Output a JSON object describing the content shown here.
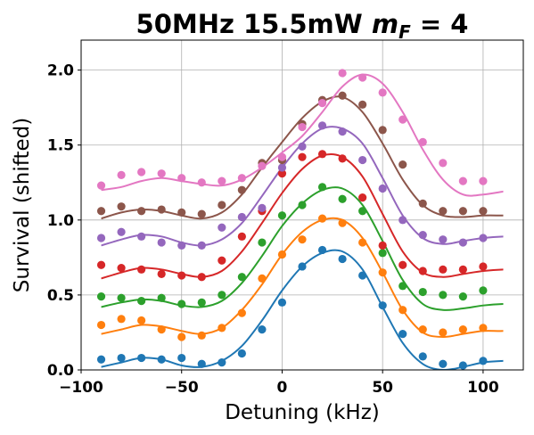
{
  "chart_data": {
    "type": "scatter",
    "title": "50MHz 15.5mW",
    "title_math": {
      "italic": "m",
      "subscript": "F",
      "rest": " = 4"
    },
    "xlabel": "Detuning (kHz)",
    "ylabel": "Survival (shifted)",
    "xlim": [
      -100,
      120
    ],
    "ylim": [
      0,
      2.2
    ],
    "xticks": [
      -100,
      -50,
      0,
      50,
      100
    ],
    "xtick_labels": [
      "−100",
      "−50",
      "0",
      "50",
      "100"
    ],
    "yticks": [
      0.0,
      0.5,
      1.0,
      1.5,
      2.0
    ],
    "ytick_labels": [
      "0.0",
      "0.5",
      "1.0",
      "1.5",
      "2.0"
    ],
    "grid": true,
    "x": [
      -90,
      -80,
      -70,
      -60,
      -50,
      -40,
      -30,
      -20,
      -10,
      0,
      10,
      20,
      30,
      40,
      50,
      60,
      70,
      80,
      90,
      100
    ],
    "series": [
      {
        "color": "#1f77b4",
        "values": [
          0.07,
          0.08,
          0.08,
          0.07,
          0.08,
          0.04,
          0.05,
          0.11,
          0.27,
          0.45,
          0.69,
          0.8,
          0.74,
          0.63,
          0.43,
          0.24,
          0.09,
          0.04,
          0.03,
          0.06
        ],
        "fit": [
          0.02,
          0.05,
          0.08,
          0.07,
          0.03,
          0.02,
          0.06,
          0.16,
          0.33,
          0.53,
          0.69,
          0.78,
          0.79,
          0.67,
          0.42,
          0.18,
          0.04,
          0.0,
          0.02,
          0.05,
          0.06,
          0.06,
          0.07
        ]
      },
      {
        "color": "#ff7f0e",
        "values": [
          0.3,
          0.34,
          0.33,
          0.27,
          0.22,
          0.23,
          0.28,
          0.38,
          0.61,
          0.77,
          0.87,
          1.01,
          0.98,
          0.85,
          0.65,
          0.4,
          0.27,
          0.25,
          0.27,
          0.28
        ],
        "fit": [
          0.24,
          0.27,
          0.3,
          0.29,
          0.26,
          0.24,
          0.28,
          0.4,
          0.57,
          0.77,
          0.92,
          1.0,
          1.0,
          0.88,
          0.65,
          0.4,
          0.25,
          0.22,
          0.24,
          0.26,
          0.26,
          0.27,
          0.28
        ]
      },
      {
        "color": "#2ca02c",
        "values": [
          0.49,
          0.48,
          0.46,
          0.48,
          0.44,
          0.45,
          0.5,
          0.62,
          0.85,
          1.03,
          1.1,
          1.22,
          1.14,
          1.06,
          0.78,
          0.56,
          0.52,
          0.5,
          0.49,
          0.53
        ],
        "fit": [
          0.42,
          0.45,
          0.47,
          0.46,
          0.43,
          0.42,
          0.46,
          0.58,
          0.76,
          0.96,
          1.11,
          1.2,
          1.21,
          1.1,
          0.86,
          0.6,
          0.44,
          0.4,
          0.41,
          0.43,
          0.44,
          0.44,
          0.45
        ]
      },
      {
        "color": "#d62728",
        "values": [
          0.7,
          0.68,
          0.67,
          0.64,
          0.63,
          0.62,
          0.73,
          0.89,
          1.06,
          1.31,
          1.42,
          1.44,
          1.41,
          1.15,
          0.83,
          0.7,
          0.66,
          0.67,
          0.67,
          0.69
        ],
        "fit": [
          0.61,
          0.65,
          0.68,
          0.67,
          0.64,
          0.62,
          0.66,
          0.79,
          0.98,
          1.18,
          1.34,
          1.43,
          1.42,
          1.29,
          1.04,
          0.79,
          0.65,
          0.62,
          0.64,
          0.66,
          0.67,
          0.67,
          0.68
        ]
      },
      {
        "color": "#9467bd",
        "values": [
          0.88,
          0.92,
          0.89,
          0.85,
          0.83,
          0.83,
          0.95,
          1.02,
          1.08,
          1.35,
          1.49,
          1.63,
          1.59,
          1.4,
          1.21,
          1.0,
          0.9,
          0.87,
          0.85,
          0.88
        ],
        "fit": [
          0.83,
          0.87,
          0.9,
          0.89,
          0.85,
          0.83,
          0.87,
          0.98,
          1.16,
          1.35,
          1.51,
          1.61,
          1.61,
          1.51,
          1.28,
          1.03,
          0.88,
          0.84,
          0.86,
          0.88,
          0.89,
          0.89,
          0.89
        ]
      },
      {
        "color": "#8c564b",
        "values": [
          1.06,
          1.09,
          1.06,
          1.07,
          1.05,
          1.04,
          1.1,
          1.2,
          1.38,
          1.4,
          1.64,
          1.8,
          1.83,
          1.77,
          1.6,
          1.37,
          1.11,
          1.06,
          1.06,
          1.06
        ],
        "fit": [
          1.01,
          1.05,
          1.07,
          1.06,
          1.03,
          1.01,
          1.05,
          1.17,
          1.35,
          1.52,
          1.68,
          1.79,
          1.82,
          1.72,
          1.51,
          1.27,
          1.1,
          1.03,
          1.02,
          1.03,
          1.03,
          1.03,
          1.03
        ]
      },
      {
        "color": "#e377c2",
        "values": [
          1.23,
          1.3,
          1.32,
          1.31,
          1.28,
          1.25,
          1.26,
          1.28,
          1.36,
          1.42,
          1.62,
          1.78,
          1.98,
          1.95,
          1.85,
          1.67,
          1.52,
          1.38,
          1.26,
          1.26
        ],
        "fit": [
          1.2,
          1.22,
          1.26,
          1.28,
          1.26,
          1.24,
          1.23,
          1.27,
          1.35,
          1.45,
          1.56,
          1.72,
          1.89,
          1.97,
          1.91,
          1.72,
          1.47,
          1.27,
          1.17,
          1.17,
          1.19,
          1.21,
          1.22
        ]
      }
    ]
  }
}
